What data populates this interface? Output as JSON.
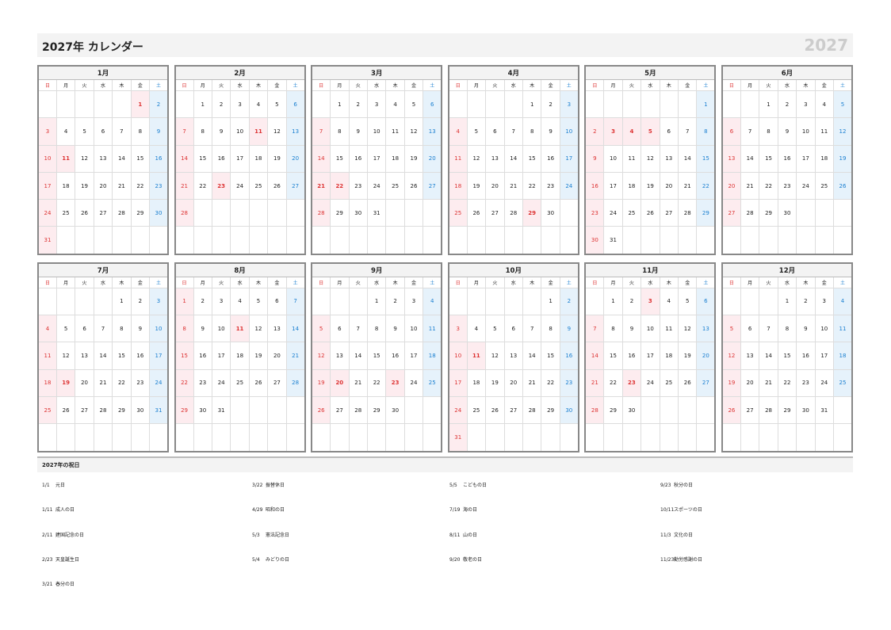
{
  "header": {
    "title": "2027年 カレンダー",
    "year": "2027"
  },
  "weekdays": [
    "日",
    "月",
    "火",
    "水",
    "木",
    "金",
    "土"
  ],
  "months": [
    {
      "name": "1月",
      "holidays": [
        1,
        11
      ],
      "weeks": [
        [
          null,
          null,
          null,
          null,
          null,
          1,
          2
        ],
        [
          3,
          4,
          5,
          6,
          7,
          8,
          9
        ],
        [
          10,
          11,
          12,
          13,
          14,
          15,
          16
        ],
        [
          17,
          18,
          19,
          20,
          21,
          22,
          23
        ],
        [
          24,
          25,
          26,
          27,
          28,
          29,
          30
        ],
        [
          31,
          null,
          null,
          null,
          null,
          null,
          null
        ]
      ]
    },
    {
      "name": "2月",
      "holidays": [
        11,
        23
      ],
      "weeks": [
        [
          null,
          1,
          2,
          3,
          4,
          5,
          6
        ],
        [
          7,
          8,
          9,
          10,
          11,
          12,
          13
        ],
        [
          14,
          15,
          16,
          17,
          18,
          19,
          20
        ],
        [
          21,
          22,
          23,
          24,
          25,
          26,
          27
        ],
        [
          28,
          null,
          null,
          null,
          null,
          null,
          null
        ]
      ]
    },
    {
      "name": "3月",
      "holidays": [
        21,
        22
      ],
      "weeks": [
        [
          null,
          1,
          2,
          3,
          4,
          5,
          6
        ],
        [
          7,
          8,
          9,
          10,
          11,
          12,
          13
        ],
        [
          14,
          15,
          16,
          17,
          18,
          19,
          20
        ],
        [
          21,
          22,
          23,
          24,
          25,
          26,
          27
        ],
        [
          28,
          29,
          30,
          31,
          null,
          null,
          null
        ]
      ]
    },
    {
      "name": "4月",
      "holidays": [
        29
      ],
      "weeks": [
        [
          null,
          null,
          null,
          null,
          1,
          2,
          3
        ],
        [
          4,
          5,
          6,
          7,
          8,
          9,
          10
        ],
        [
          11,
          12,
          13,
          14,
          15,
          16,
          17
        ],
        [
          18,
          19,
          20,
          21,
          22,
          23,
          24
        ],
        [
          25,
          26,
          27,
          28,
          29,
          30,
          null
        ]
      ]
    },
    {
      "name": "5月",
      "holidays": [
        3,
        4,
        5
      ],
      "weeks": [
        [
          null,
          null,
          null,
          null,
          null,
          null,
          1
        ],
        [
          2,
          3,
          4,
          5,
          6,
          7,
          8
        ],
        [
          9,
          10,
          11,
          12,
          13,
          14,
          15
        ],
        [
          16,
          17,
          18,
          19,
          20,
          21,
          22
        ],
        [
          23,
          24,
          25,
          26,
          27,
          28,
          29
        ],
        [
          30,
          31,
          null,
          null,
          null,
          null,
          null
        ]
      ]
    },
    {
      "name": "6月",
      "holidays": [],
      "weeks": [
        [
          null,
          null,
          1,
          2,
          3,
          4,
          5
        ],
        [
          6,
          7,
          8,
          9,
          10,
          11,
          12
        ],
        [
          13,
          14,
          15,
          16,
          17,
          18,
          19
        ],
        [
          20,
          21,
          22,
          23,
          24,
          25,
          26
        ],
        [
          27,
          28,
          29,
          30,
          null,
          null,
          null
        ]
      ]
    },
    {
      "name": "7月",
      "holidays": [
        19
      ],
      "weeks": [
        [
          null,
          null,
          null,
          null,
          1,
          2,
          3
        ],
        [
          4,
          5,
          6,
          7,
          8,
          9,
          10
        ],
        [
          11,
          12,
          13,
          14,
          15,
          16,
          17
        ],
        [
          18,
          19,
          20,
          21,
          22,
          23,
          24
        ],
        [
          25,
          26,
          27,
          28,
          29,
          30,
          31
        ]
      ]
    },
    {
      "name": "8月",
      "holidays": [
        11
      ],
      "weeks": [
        [
          1,
          2,
          3,
          4,
          5,
          6,
          7
        ],
        [
          8,
          9,
          10,
          11,
          12,
          13,
          14
        ],
        [
          15,
          16,
          17,
          18,
          19,
          20,
          21
        ],
        [
          22,
          23,
          24,
          25,
          26,
          27,
          28
        ],
        [
          29,
          30,
          31,
          null,
          null,
          null,
          null
        ]
      ]
    },
    {
      "name": "9月",
      "holidays": [
        20,
        23
      ],
      "weeks": [
        [
          null,
          null,
          null,
          1,
          2,
          3,
          4
        ],
        [
          5,
          6,
          7,
          8,
          9,
          10,
          11
        ],
        [
          12,
          13,
          14,
          15,
          16,
          17,
          18
        ],
        [
          19,
          20,
          21,
          22,
          23,
          24,
          25
        ],
        [
          26,
          27,
          28,
          29,
          30,
          null,
          null
        ]
      ]
    },
    {
      "name": "10月",
      "holidays": [
        11
      ],
      "weeks": [
        [
          null,
          null,
          null,
          null,
          null,
          1,
          2
        ],
        [
          3,
          4,
          5,
          6,
          7,
          8,
          9
        ],
        [
          10,
          11,
          12,
          13,
          14,
          15,
          16
        ],
        [
          17,
          18,
          19,
          20,
          21,
          22,
          23
        ],
        [
          24,
          25,
          26,
          27,
          28,
          29,
          30
        ],
        [
          31,
          null,
          null,
          null,
          null,
          null,
          null
        ]
      ]
    },
    {
      "name": "11月",
      "holidays": [
        3,
        23
      ],
      "weeks": [
        [
          null,
          1,
          2,
          3,
          4,
          5,
          6
        ],
        [
          7,
          8,
          9,
          10,
          11,
          12,
          13
        ],
        [
          14,
          15,
          16,
          17,
          18,
          19,
          20
        ],
        [
          21,
          22,
          23,
          24,
          25,
          26,
          27
        ],
        [
          28,
          29,
          30,
          null,
          null,
          null,
          null
        ]
      ]
    },
    {
      "name": "12月",
      "holidays": [],
      "weeks": [
        [
          null,
          null,
          null,
          1,
          2,
          3,
          4
        ],
        [
          5,
          6,
          7,
          8,
          9,
          10,
          11
        ],
        [
          12,
          13,
          14,
          15,
          16,
          17,
          18
        ],
        [
          19,
          20,
          21,
          22,
          23,
          24,
          25
        ],
        [
          26,
          27,
          28,
          29,
          30,
          31,
          null
        ]
      ]
    }
  ],
  "holiday_list": {
    "title": "2027年の祝日",
    "items": [
      {
        "date": "1/1",
        "name": "元日"
      },
      {
        "date": "1/11",
        "name": "成人の日"
      },
      {
        "date": "2/11",
        "name": "建国記念の日"
      },
      {
        "date": "2/23",
        "name": "天皇誕生日"
      },
      {
        "date": "3/21",
        "name": "春分の日"
      },
      {
        "date": "3/22",
        "name": "振替休日"
      },
      {
        "date": "4/29",
        "name": "昭和の日"
      },
      {
        "date": "5/3",
        "name": "憲法記念日"
      },
      {
        "date": "5/4",
        "name": "みどりの日"
      },
      {
        "date": "5/5",
        "name": "こどもの日"
      },
      {
        "date": "7/19",
        "name": "海の日"
      },
      {
        "date": "8/11",
        "name": "山の日"
      },
      {
        "date": "9/20",
        "name": "敬老の日"
      },
      {
        "date": "9/23",
        "name": "秋分の日"
      },
      {
        "date": "10/11",
        "name": "スポーツの日"
      },
      {
        "date": "11/3",
        "name": "文化の日"
      },
      {
        "date": "11/23",
        "name": "勤労感謝の日"
      }
    ]
  }
}
